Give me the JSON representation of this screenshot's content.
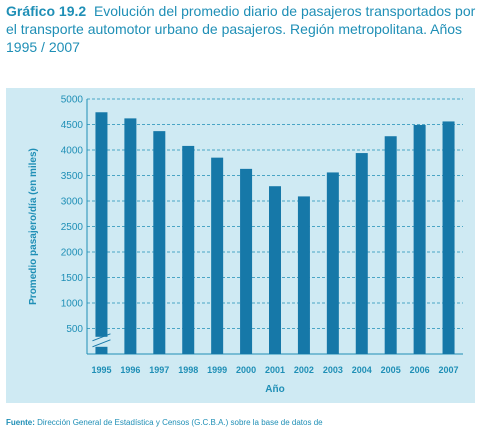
{
  "title": {
    "number": "Gráfico 19.2",
    "text": "Evolución del promedio diario de pasajeros transportados por el transporte automotor urbano de pasajeros. Región metropolitana. Años 1995 / 2007"
  },
  "source": {
    "label": "Fuente:",
    "text": "Dirección General de Estadística y Censos (G.C.B.A.) sobre la base de datos de"
  },
  "colors": {
    "bar": "#1678a8",
    "plot_bg": "#cfeaf3",
    "text": "#1f8fb6",
    "grid": "#1f8fb6"
  },
  "chart_data": {
    "type": "bar",
    "categories": [
      "1995",
      "1996",
      "1997",
      "1998",
      "1999",
      "2000",
      "2001",
      "2002",
      "2003",
      "2004",
      "2005",
      "2006",
      "2007"
    ],
    "series": [
      {
        "values": [
          4740,
          4620,
          4370,
          4080,
          3850,
          3630,
          3290,
          3090,
          3560,
          3940,
          4270,
          4490,
          4560
        ]
      }
    ],
    "xlabel": "Año",
    "ylabel": "Promedio pasajero/día (en miles)",
    "ylim": [
      0,
      5000
    ],
    "yticks": [
      "500",
      "1000",
      "1500",
      "2000",
      "2500",
      "3000",
      "3500",
      "4000",
      "4500",
      "5000"
    ],
    "axis_break": true,
    "grid": "horizontal dashed"
  }
}
